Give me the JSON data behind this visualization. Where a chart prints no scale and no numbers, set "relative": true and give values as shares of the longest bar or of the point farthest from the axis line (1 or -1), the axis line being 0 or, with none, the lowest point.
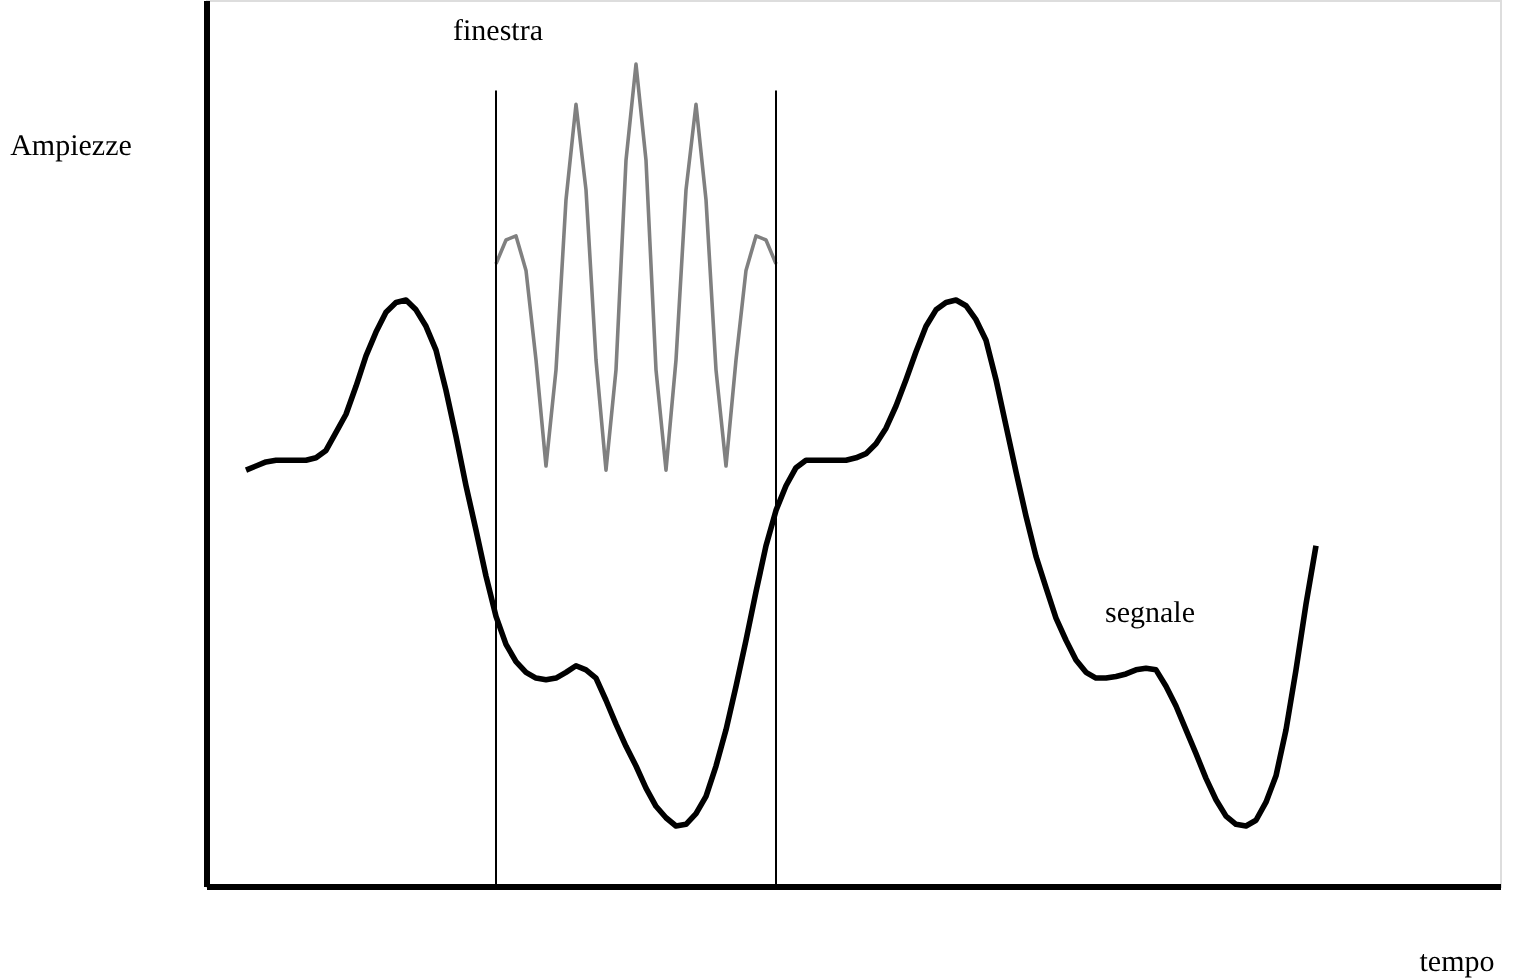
{
  "chart_data": {
    "type": "line",
    "relative": true,
    "tick_labels": false,
    "xlabel": "tempo",
    "ylabel": "Ampiezze",
    "categories": [
      null,
      null,
      null,
      null,
      null,
      null,
      null,
      null,
      null,
      null,
      null,
      null,
      null,
      null,
      null,
      null,
      null,
      null,
      null,
      null,
      null,
      null,
      null,
      null,
      null,
      null,
      null,
      null,
      null,
      null,
      null,
      null,
      null,
      null,
      null,
      null,
      null,
      null,
      null,
      null,
      null,
      null,
      null,
      null,
      null,
      null,
      null,
      null,
      null,
      null,
      null,
      null,
      null,
      null,
      null,
      null,
      null,
      null,
      null,
      null,
      null,
      null,
      null,
      null,
      null,
      null,
      null,
      null,
      null,
      null,
      null,
      null,
      null,
      null,
      null,
      null,
      null,
      null,
      null,
      null,
      null,
      null,
      null,
      null,
      null,
      null,
      null,
      null,
      null,
      null,
      null,
      null,
      null,
      null,
      null,
      null,
      null,
      null,
      null,
      null,
      null,
      null,
      null,
      null,
      null,
      null,
      null,
      null
    ],
    "series": [
      {
        "color": "#000000",
        "values": [
          0.506,
          0.511,
          0.516,
          0.518,
          0.518,
          0.518,
          0.518,
          0.521,
          0.53,
          0.552,
          0.574,
          0.608,
          0.645,
          0.674,
          0.698,
          0.71,
          0.713,
          0.701,
          0.681,
          0.652,
          0.603,
          0.547,
          0.487,
          0.433,
          0.377,
          0.328,
          0.294,
          0.273,
          0.26,
          0.253,
          0.251,
          0.253,
          0.26,
          0.268,
          0.263,
          0.253,
          0.226,
          0.197,
          0.17,
          0.146,
          0.119,
          0.097,
          0.083,
          0.073,
          0.075,
          0.088,
          0.109,
          0.146,
          0.19,
          0.243,
          0.299,
          0.358,
          0.414,
          0.457,
          0.487,
          0.509,
          0.518,
          0.518,
          0.518,
          0.518,
          0.518,
          0.521,
          0.526,
          0.538,
          0.557,
          0.584,
          0.616,
          0.65,
          0.681,
          0.701,
          0.71,
          0.713,
          0.706,
          0.689,
          0.664,
          0.616,
          0.56,
          0.504,
          0.45,
          0.401,
          0.363,
          0.326,
          0.299,
          0.275,
          0.26,
          0.253,
          0.253,
          0.255,
          0.258,
          0.263,
          0.265,
          0.263,
          0.243,
          0.219,
          0.19,
          0.161,
          0.131,
          0.105,
          0.085,
          0.075,
          0.073,
          0.08,
          0.102,
          0.134,
          0.19,
          0.263,
          0.343,
          0.414
        ]
      },
      {
        "color": "#808080",
        "values": [
          null,
          null,
          null,
          null,
          null,
          null,
          null,
          null,
          null,
          null,
          null,
          null,
          null,
          null,
          null,
          null,
          null,
          null,
          null,
          null,
          null,
          null,
          null,
          null,
          null,
          0.757,
          0.786,
          0.791,
          0.749,
          0.64,
          0.511,
          0.628,
          0.835,
          0.951,
          0.847,
          0.64,
          0.506,
          0.628,
          0.883,
          1.0,
          0.883,
          0.628,
          0.506,
          0.64,
          0.847,
          0.951,
          0.835,
          0.628,
          0.511,
          0.64,
          0.749,
          0.791,
          0.786,
          0.757,
          null,
          null,
          null,
          null,
          null,
          null,
          null,
          null,
          null,
          null,
          null,
          null,
          null,
          null,
          null,
          null,
          null,
          null,
          null,
          null,
          null,
          null,
          null,
          null,
          null,
          null,
          null,
          null,
          null,
          null,
          null,
          null,
          null,
          null,
          null,
          null,
          null,
          null,
          null,
          null,
          null,
          null,
          null,
          null,
          null,
          null,
          null,
          null,
          null,
          null,
          null,
          null,
          null,
          null
        ]
      }
    ],
    "annotations": [
      "finestra",
      "segnale"
    ]
  }
}
